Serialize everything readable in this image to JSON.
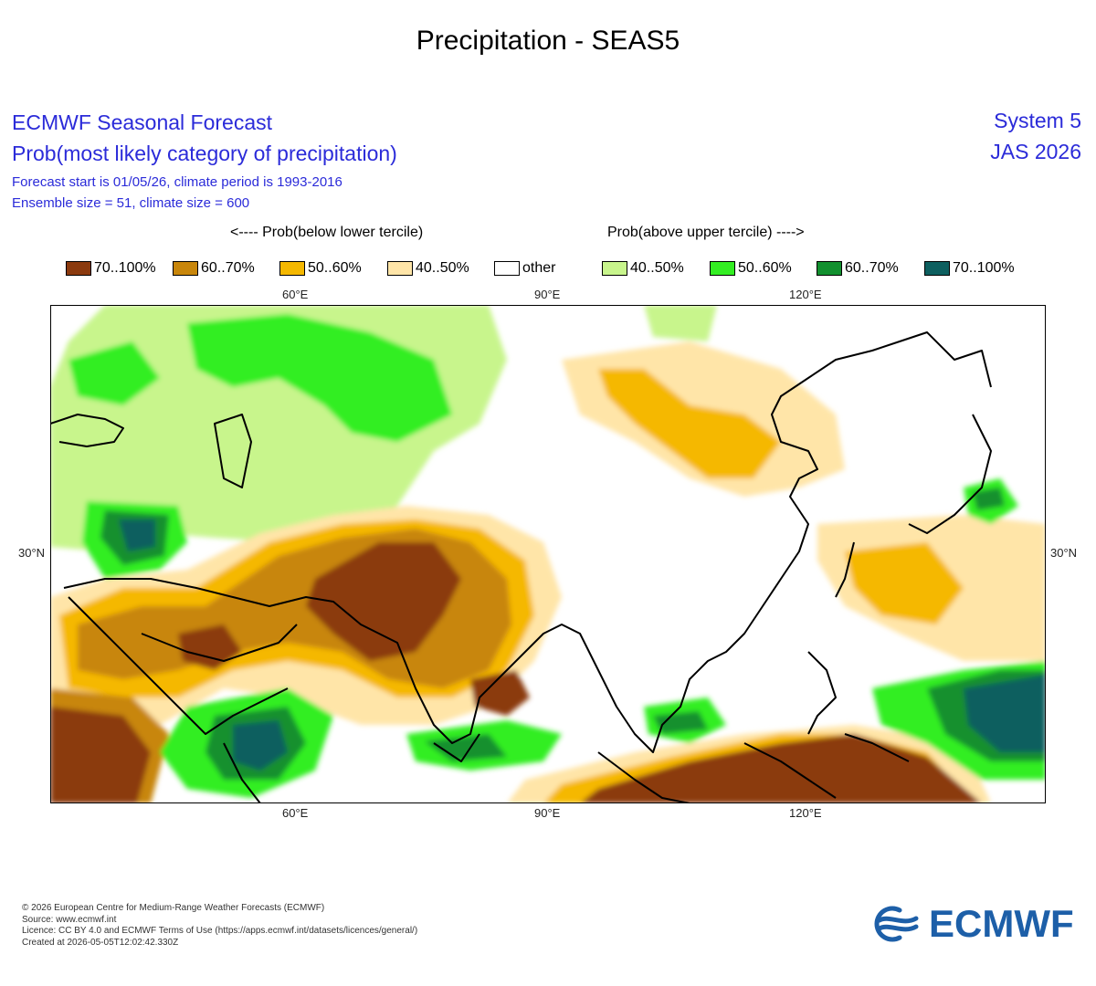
{
  "page_title": "Precipitation - SEAS5",
  "forecast": {
    "title": "ECMWF Seasonal Forecast",
    "subtitle": "Prob(most likely category of precipitation)",
    "start_line": "Forecast start is 01/05/26, climate period is 1993-2016",
    "ensemble_line": "Ensemble size = 51, climate size = 600",
    "system": "System 5",
    "period": "JAS 2026"
  },
  "legend": {
    "below_header": "<---- Prob(below lower tercile)",
    "above_header": "Prob(above upper tercile) ---->",
    "items": [
      {
        "label": "70..100%",
        "color": "#8b3a0e"
      },
      {
        "label": "60..70%",
        "color": "#c8860b"
      },
      {
        "label": "50..60%",
        "color": "#f5b800"
      },
      {
        "label": "40..50%",
        "color": "#ffe5a8"
      },
      {
        "label": "other",
        "color": "#ffffff"
      },
      {
        "label": "40..50%",
        "color": "#c8f58c"
      },
      {
        "label": "50..60%",
        "color": "#33ee22"
      },
      {
        "label": "60..70%",
        "color": "#12902f"
      },
      {
        "label": "70..100%",
        "color": "#0d5f5f"
      }
    ]
  },
  "axes": {
    "top_ticks": [
      "60°E",
      "90°E",
      "120°E"
    ],
    "bottom_ticks": [
      "60°E",
      "90°E",
      "120°E"
    ],
    "left_tick": "30°N",
    "right_tick": "30°N"
  },
  "footer": {
    "copyright": "© 2026 European Centre for Medium-Range Weather Forecasts (ECMWF)",
    "source": "Source: www.ecmwf.int",
    "licence": "Licence: CC BY 4.0 and ECMWF Terms of Use (https://apps.ecmwf.int/datasets/licences/general/)",
    "created": "Created at 2026-05-05T12:02:42.330Z"
  },
  "logo": {
    "text": "ECMWF",
    "color": "#1d5fa8"
  }
}
